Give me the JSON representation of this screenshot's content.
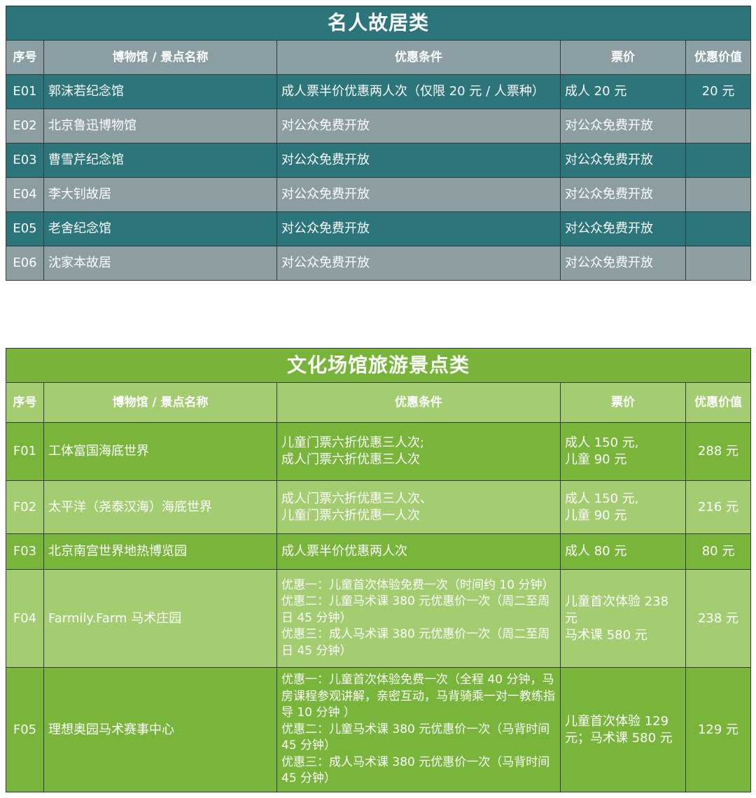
{
  "headers": {
    "seq": "序号",
    "name": "博物馆 / 景点名称",
    "cond": "优惠条件",
    "price": "票价",
    "value": "优惠价值"
  },
  "table1": {
    "title": "名人故居类",
    "rows": [
      {
        "id": "E01",
        "name": "郭沫若纪念馆",
        "cond": "成人票半价优惠两人次（仅限 20 元 / 人票种）",
        "price": "成人 20 元",
        "value": "20 元"
      },
      {
        "id": "E02",
        "name": "北京鲁迅博物馆",
        "cond": "对公众免费开放",
        "price": "对公众免费开放",
        "value": ""
      },
      {
        "id": "E03",
        "name": "曹雪芹纪念馆",
        "cond": "对公众免费开放",
        "price": "对公众免费开放",
        "value": ""
      },
      {
        "id": "E04",
        "name": "李大钊故居",
        "cond": "对公众免费开放",
        "price": "对公众免费开放",
        "value": ""
      },
      {
        "id": "E05",
        "name": "老舍纪念馆",
        "cond": "对公众免费开放",
        "price": "对公众免费开放",
        "value": ""
      },
      {
        "id": "E06",
        "name": "沈家本故居",
        "cond": "对公众免费开放",
        "price": "对公众免费开放",
        "value": ""
      }
    ]
  },
  "table2": {
    "title": "文化场馆旅游景点类",
    "rows": [
      {
        "id": "F01",
        "name": "工体富国海底世界",
        "cond": "儿童门票六折优惠三人次;\n成人门票六折优惠三人次",
        "price": "成人 150 元,\n儿童 90 元",
        "value": "288 元"
      },
      {
        "id": "F02",
        "name": "太平洋（尧泰汉海）海底世界",
        "cond": "成人门票六折优惠三人次、\n儿童门票六折优惠一人次",
        "price": "成人 150 元,\n儿童 90 元",
        "value": "216 元"
      },
      {
        "id": "F03",
        "name": "北京南宫世界地热博览园",
        "cond": "成人票半价优惠两人次",
        "price": "成人 80 元",
        "value": "80 元"
      },
      {
        "id": "F04",
        "name": "Farmily.Farm 马术庄园",
        "cond": "优惠一：儿童首次体验免费一次（时间约 10 分钟）\n优惠二：儿童马术课 380 元优惠价一次（周二至周日 45 分钟）\n优惠三：成人马术课 380 元优惠价一次（周二至周日 45 分钟）",
        "price": "儿童首次体验 238 元\n马术课 580 元",
        "value": "238 元"
      },
      {
        "id": "F05",
        "name": "理想奥园马术赛事中心",
        "cond": "优惠一：儿童首次体验免费一次（全程 40 分钟，马房课程参观讲解，亲密互动，马背骑乘一对一教练指导 10 分钟 ）\n优惠二：儿童马术课 380 元优惠价一次（马背时间 45 分钟）\n优惠三：成人马术课 380 元优惠价一次（马背时间 45 分钟）",
        "price": "儿童首次体验 129 元；马术课 580 元",
        "value": "129 元"
      }
    ]
  },
  "colors": {
    "teal": "#2b757b",
    "grey": "#8d9ea3",
    "green": "#7ab53b",
    "light_green": "#a4cd72"
  }
}
